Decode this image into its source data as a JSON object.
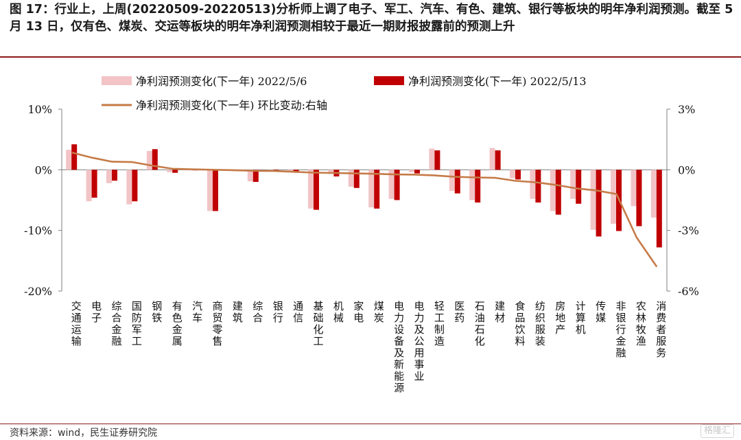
{
  "figure_title": "图 17：行业上，上周(20220509-20220513)分析师上调了电子、军工、汽车、有色、建筑、银行等板块的明年净利润预测。截至 5 月 13 日，仅有色、煤炭、交运等板块的明年净利润预测相较于最近一期财报披露前的预测上升",
  "source": "资料来源：wind，民生证券研究院",
  "watermark": "格隆汇",
  "colors": {
    "series1": "#f2c4c6",
    "series2": "#c00000",
    "line": "#c57a46",
    "frame": "#8b1a1a"
  },
  "chart_data": {
    "type": "bar",
    "legend_placement": "top",
    "grid": false,
    "categories": [
      "交通运输",
      "电子",
      "综合金融",
      "国防军工",
      "钢铁",
      "有色金属",
      "汽车",
      "商贸零售",
      "建筑",
      "综合",
      "银行",
      "通信",
      "基础化工",
      "机械",
      "家电",
      "煤炭",
      "电力设备及新能源",
      "电力及公用事业",
      "轻工制造",
      "医药",
      "石油石化",
      "建材",
      "食品饮料",
      "纺织服装",
      "房地产",
      "计算机",
      "传媒",
      "非银行金融",
      "农林牧渔",
      "消费者服务"
    ],
    "series": [
      {
        "name": "净利润预测变化(下一年) 2022/5/6",
        "axis": "left",
        "kind": "bar",
        "values": [
          3.3,
          -5.2,
          -2.2,
          -5.7,
          3.1,
          -0.4,
          -0.1,
          -6.8,
          -0.1,
          -1.9,
          -0.2,
          -0.4,
          -6.4,
          -0.7,
          -2.8,
          -6.2,
          -4.8,
          -0.4,
          3.5,
          -3.5,
          -5.0,
          3.6,
          -1.4,
          -4.8,
          -6.8,
          -4.8,
          -9.9,
          -8.9,
          -6.0,
          -7.9
        ]
      },
      {
        "name": "净利润预测变化(下一年) 2022/5/13",
        "axis": "left",
        "kind": "bar",
        "values": [
          4.2,
          -4.6,
          -1.8,
          -5.2,
          3.4,
          -0.5,
          -0.1,
          -6.8,
          -0.2,
          -2.0,
          -0.3,
          -0.4,
          -6.6,
          -1.1,
          -3.0,
          -6.4,
          -5.0,
          -0.6,
          3.2,
          -3.9,
          -5.4,
          3.2,
          -1.6,
          -5.4,
          -7.4,
          -5.6,
          -11.0,
          -10.1,
          -9.3,
          -12.8
        ]
      },
      {
        "name": "净利润预测变化(下一年) 环比变动:右轴",
        "axis": "right",
        "kind": "line",
        "values": [
          0.85,
          0.6,
          0.4,
          0.38,
          0.2,
          0.05,
          0.02,
          0.0,
          -0.02,
          -0.05,
          -0.06,
          -0.1,
          -0.14,
          -0.16,
          -0.18,
          -0.2,
          -0.23,
          -0.24,
          -0.28,
          -0.35,
          -0.38,
          -0.4,
          -0.55,
          -0.62,
          -0.75,
          -0.92,
          -1.02,
          -1.2,
          -3.35,
          -4.8
        ]
      }
    ],
    "y_left": {
      "ylim": [
        -20,
        10
      ],
      "ticks": [
        10,
        0,
        -10,
        -20
      ],
      "tick_labels": [
        "10%",
        "0%",
        "-10%",
        "-20%"
      ]
    },
    "y_right": {
      "ylim": [
        -6,
        3
      ],
      "ticks": [
        3,
        0,
        -3,
        -6
      ],
      "tick_labels": [
        "3%",
        "0%",
        "-3%",
        "-6%"
      ]
    },
    "title": "",
    "xlabel": "",
    "ylabel": ""
  }
}
